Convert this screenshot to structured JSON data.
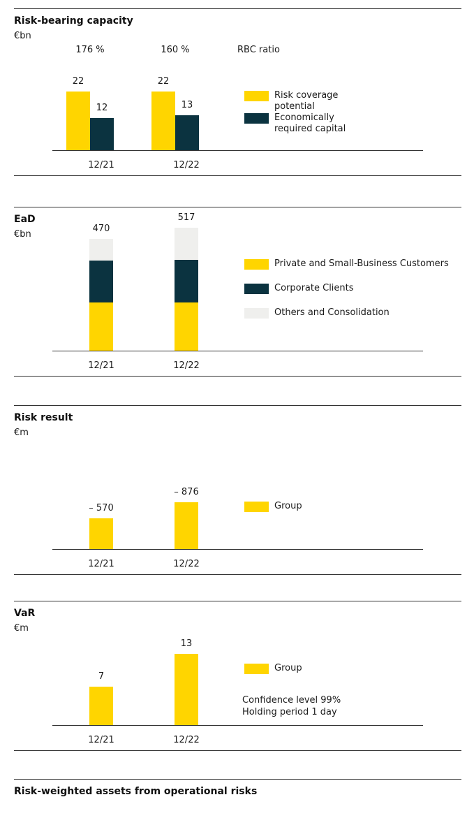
{
  "chart_data": [
    {
      "type": "grouped_bar",
      "title": "Risk-bearing capacity",
      "unit": "€bn",
      "ratio_labels": [
        "176 %",
        "160 %"
      ],
      "ratio_title": "RBC ratio",
      "categories": [
        "12/21",
        "12/22"
      ],
      "series": [
        {
          "name": "Risk coverage potential",
          "color": "#ffd500",
          "values": [
            22,
            22
          ]
        },
        {
          "name": "Economically required capital",
          "color": "#0b3340",
          "values": [
            12,
            13
          ]
        }
      ]
    },
    {
      "type": "stacked_bar",
      "title": "EaD",
      "unit": "€bn",
      "categories": [
        "12/21",
        "12/22"
      ],
      "totals": [
        470,
        517
      ],
      "series": [
        {
          "name": "Private and Small-Business Customers",
          "color": "#ffd500",
          "values": [
            204,
            203
          ]
        },
        {
          "name": "Corporate Clients",
          "color": "#0b3340",
          "values": [
            174,
            179
          ]
        },
        {
          "name": "Others and Consolidation",
          "color": "#efefed",
          "values": [
            92,
            135
          ]
        }
      ]
    },
    {
      "type": "bar",
      "title": "Risk result",
      "unit": "€m",
      "categories": [
        "12/21",
        "12/22"
      ],
      "series": [
        {
          "name": "Group",
          "color": "#ffd500",
          "values": [
            -570,
            -876
          ],
          "value_labels": [
            "– 570",
            "– 876"
          ]
        }
      ]
    },
    {
      "type": "bar",
      "title": "VaR",
      "unit": "€m",
      "categories": [
        "12/21",
        "12/22"
      ],
      "annotations": [
        "Confidence level 99%",
        "Holding period 1 day"
      ],
      "series": [
        {
          "name": "Group",
          "color": "#ffd500",
          "values": [
            7,
            13
          ]
        }
      ]
    },
    {
      "type": "bar",
      "title": "Risk-weighted assets from operational risks"
    }
  ]
}
